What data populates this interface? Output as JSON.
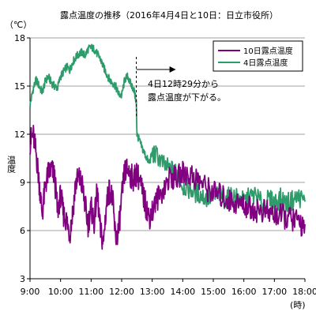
{
  "chart_data": {
    "type": "line",
    "title": "露点温度の推移（2016年4月4日と10日：日立市役所）",
    "ylabel_unit": "（℃）",
    "ylabel": "温度",
    "xlabel_unit": "(時)",
    "x_ticks": [
      "9:00",
      "10:00",
      "11:00",
      "12:00",
      "13:00",
      "14:00",
      "15:00",
      "16:00",
      "17:00",
      "18:00"
    ],
    "y_ticks": [
      "3",
      "6",
      "9",
      "12",
      "15",
      "18"
    ],
    "ylim": [
      3,
      18
    ],
    "xlim_hours": [
      9,
      18
    ],
    "grid": "horizontal",
    "legend_position": "top-right",
    "annotation": {
      "line1": "4日12時29分から",
      "line2": "露点温度が下がる。",
      "marker_time": 12.48
    },
    "colors": {
      "apr10": "#800080",
      "apr4": "#2e9b6a"
    },
    "series": [
      {
        "name": "10日露点温度",
        "key": "apr10",
        "x": [
          9.0,
          9.1,
          9.2,
          9.3,
          9.4,
          9.5,
          9.6,
          9.7,
          9.8,
          9.9,
          10.0,
          10.1,
          10.2,
          10.3,
          10.4,
          10.5,
          10.6,
          10.7,
          10.8,
          10.9,
          11.0,
          11.1,
          11.2,
          11.3,
          11.4,
          11.5,
          11.6,
          11.7,
          11.8,
          11.9,
          12.0,
          12.1,
          12.2,
          12.3,
          12.4,
          12.5,
          12.6,
          12.7,
          12.8,
          12.9,
          13.0,
          13.2,
          13.4,
          13.6,
          13.8,
          14.0,
          14.2,
          14.4,
          14.6,
          14.8,
          15.0,
          15.2,
          15.4,
          15.6,
          15.8,
          16.0,
          16.2,
          16.4,
          16.6,
          16.8,
          17.0,
          17.2,
          17.4,
          17.6,
          17.8,
          18.0
        ],
        "y": [
          11.5,
          12.0,
          10.8,
          9.0,
          7.0,
          8.8,
          9.6,
          9.8,
          9.4,
          7.2,
          8.2,
          7.0,
          6.6,
          5.8,
          7.2,
          9.0,
          9.3,
          8.9,
          7.6,
          6.4,
          7.4,
          6.5,
          8.5,
          6.0,
          5.2,
          7.6,
          8.6,
          8.0,
          5.5,
          6.0,
          8.0,
          9.7,
          9.8,
          9.4,
          9.2,
          9.6,
          9.0,
          8.2,
          7.5,
          6.8,
          7.2,
          8.1,
          8.7,
          9.4,
          9.2,
          9.6,
          9.5,
          9.3,
          9.0,
          8.6,
          8.4,
          8.2,
          8.0,
          7.8,
          7.7,
          7.6,
          7.4,
          7.3,
          7.2,
          7.1,
          7.0,
          6.9,
          6.8,
          6.7,
          6.5,
          6.4
        ]
      },
      {
        "name": "4日露点温度",
        "key": "apr4",
        "x": [
          9.0,
          9.1,
          9.2,
          9.3,
          9.4,
          9.5,
          9.6,
          9.7,
          9.8,
          9.9,
          10.0,
          10.1,
          10.2,
          10.3,
          10.4,
          10.5,
          10.6,
          10.7,
          10.8,
          10.9,
          11.0,
          11.1,
          11.2,
          11.3,
          11.4,
          11.5,
          11.6,
          11.7,
          11.8,
          11.9,
          12.0,
          12.1,
          12.2,
          12.3,
          12.4,
          12.48,
          12.5,
          12.6,
          12.7,
          12.8,
          12.9,
          13.0,
          13.2,
          13.4,
          13.6,
          13.8,
          14.0,
          14.2,
          14.4,
          14.6,
          14.8,
          15.0,
          15.2,
          15.4,
          15.6,
          15.8,
          16.0,
          16.2,
          16.4,
          16.6,
          16.8,
          17.0,
          17.2,
          17.4,
          17.6,
          17.8,
          18.0
        ],
        "y": [
          13.8,
          14.8,
          15.4,
          15.0,
          14.6,
          15.3,
          15.6,
          15.2,
          15.0,
          14.9,
          15.6,
          15.9,
          16.2,
          16.0,
          16.5,
          16.8,
          17.0,
          17.1,
          16.9,
          17.3,
          17.4,
          17.3,
          17.0,
          16.7,
          16.2,
          15.8,
          15.4,
          15.2,
          15.0,
          14.5,
          14.4,
          15.4,
          15.6,
          15.1,
          14.8,
          14.0,
          12.0,
          11.5,
          11.0,
          10.6,
          10.2,
          10.8,
          10.6,
          10.0,
          9.8,
          9.6,
          8.8,
          8.6,
          8.4,
          8.2,
          8.0,
          8.1,
          8.3,
          7.9,
          8.2,
          8.0,
          7.8,
          8.1,
          8.2,
          7.6,
          7.9,
          7.8,
          8.0,
          7.7,
          7.9,
          8.1,
          7.8
        ]
      }
    ]
  }
}
